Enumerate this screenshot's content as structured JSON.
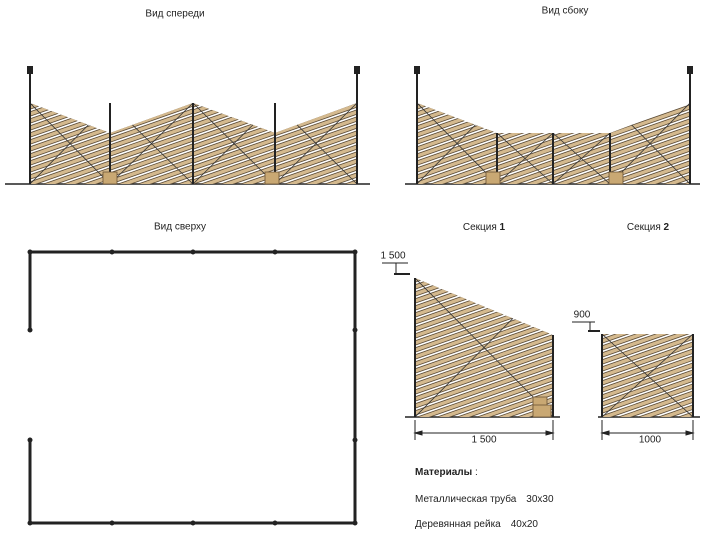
{
  "views": [
    {
      "title": "Вид спереди"
    },
    {
      "title": "Вид сбоку"
    },
    {
      "title": "Вид сверху"
    }
  ],
  "sections": [
    {
      "label": "Секция",
      "number": "1",
      "height_label": "1 500",
      "width_label": "1 500"
    },
    {
      "label": "Секция",
      "number": "2",
      "height_label": "900",
      "width_label": "1000"
    }
  ],
  "materials": {
    "title": "Материалы",
    "separator": ":",
    "items": [
      {
        "name": "Металлическая труба",
        "size": "30х30"
      },
      {
        "name": "Деревянная рейка",
        "size": "40х20"
      }
    ]
  }
}
